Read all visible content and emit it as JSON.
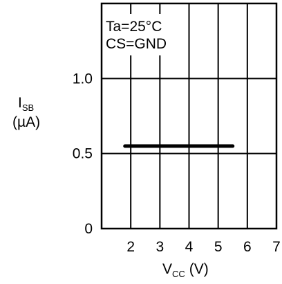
{
  "chart_data": {
    "type": "line",
    "annotations": [
      "Ta=25°C",
      "CS=GND"
    ],
    "ylabel": {
      "main": "I",
      "sub": "SB",
      "unit": "(µA)"
    },
    "xlabel": {
      "main": "V",
      "sub": "CC",
      "unit": "(V)"
    },
    "xlim": [
      1,
      7
    ],
    "ylim": [
      0,
      1.5
    ],
    "x_ticks": [
      2,
      3,
      4,
      5,
      6,
      7
    ],
    "y_ticks": [
      {
        "value": 0,
        "label": "0"
      },
      {
        "value": 0.5,
        "label": "0.5"
      },
      {
        "value": 1.0,
        "label": "1.0"
      }
    ],
    "grid": true,
    "series": [
      {
        "x": [
          1.8,
          5.5
        ],
        "y": [
          0.55,
          0.55
        ],
        "color": "#000000"
      }
    ]
  }
}
